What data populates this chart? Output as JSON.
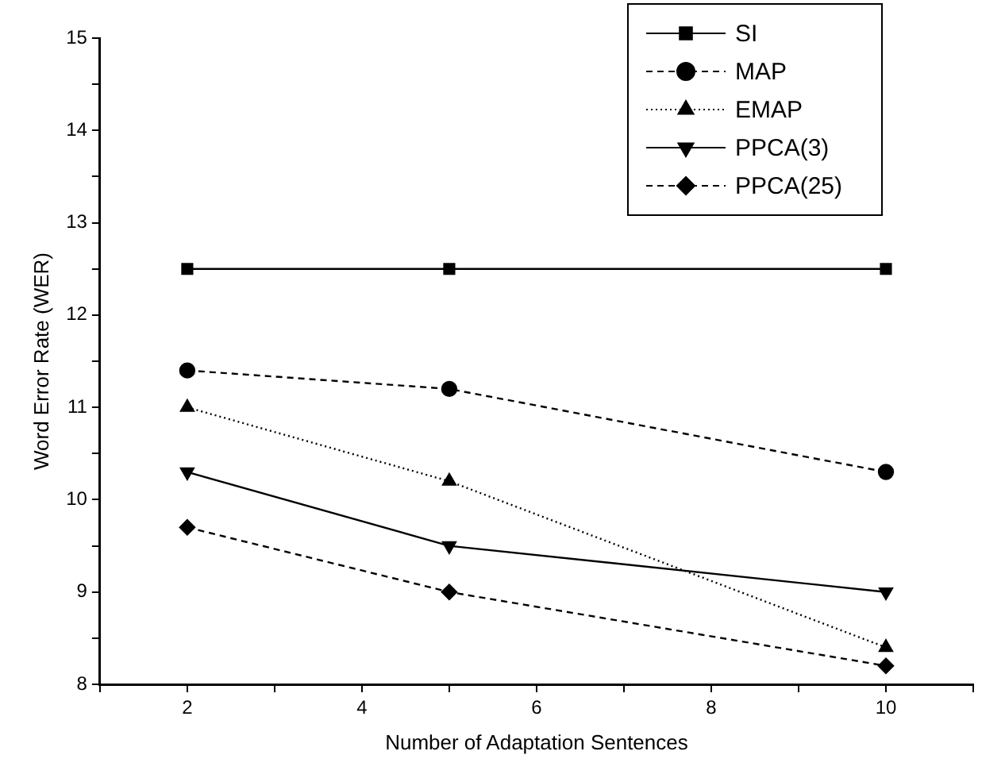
{
  "chart_data": {
    "type": "line",
    "xlabel": "Number of Adaptation Sentences",
    "ylabel": "Word Error Rate (WER)",
    "x": [
      2,
      5,
      10
    ],
    "xlim": [
      1,
      11
    ],
    "xticks": [
      {
        "value": 1,
        "label": null
      },
      2,
      {
        "value": 3,
        "label": null
      },
      4,
      {
        "value": 5,
        "label": null
      },
      6,
      {
        "value": 7,
        "label": null
      },
      8,
      {
        "value": 9,
        "label": null
      },
      10,
      {
        "value": 11,
        "label": null
      }
    ],
    "ylim": [
      8,
      15
    ],
    "yticks": [
      8,
      {
        "value": 8.5,
        "label": null
      },
      9,
      {
        "value": 9.5,
        "label": null
      },
      10,
      {
        "value": 10.5,
        "label": null
      },
      11,
      {
        "value": 11.5,
        "label": null
      },
      12,
      {
        "value": 12.5,
        "label": null
      },
      13,
      {
        "value": 13.5,
        "label": null
      },
      14,
      {
        "value": 14.5,
        "label": null
      },
      15
    ],
    "grid": false,
    "legend": "top right",
    "series": [
      {
        "name": "SI",
        "color": "#000000",
        "values": [
          12.5,
          12.5,
          12.5
        ],
        "marker": "square",
        "line_style": "solid"
      },
      {
        "name": "MAP",
        "color": "#000000",
        "values": [
          11.4,
          11.2,
          10.3
        ],
        "marker": "circle",
        "line_style": "dashed"
      },
      {
        "name": "EMAP",
        "color": "#000000",
        "values": [
          11.0,
          10.2,
          8.4
        ],
        "marker": "triangle",
        "line_style": "dotted"
      },
      {
        "name": "PPCA(3)",
        "color": "#000000",
        "values": [
          10.3,
          9.5,
          9.0
        ],
        "marker": "triangle_down",
        "line_style": "solid"
      },
      {
        "name": "PPCA(25)",
        "color": "#000000",
        "values": [
          9.7,
          9.0,
          8.2
        ],
        "marker": "diamond",
        "line_style": "dashed"
      }
    ]
  }
}
